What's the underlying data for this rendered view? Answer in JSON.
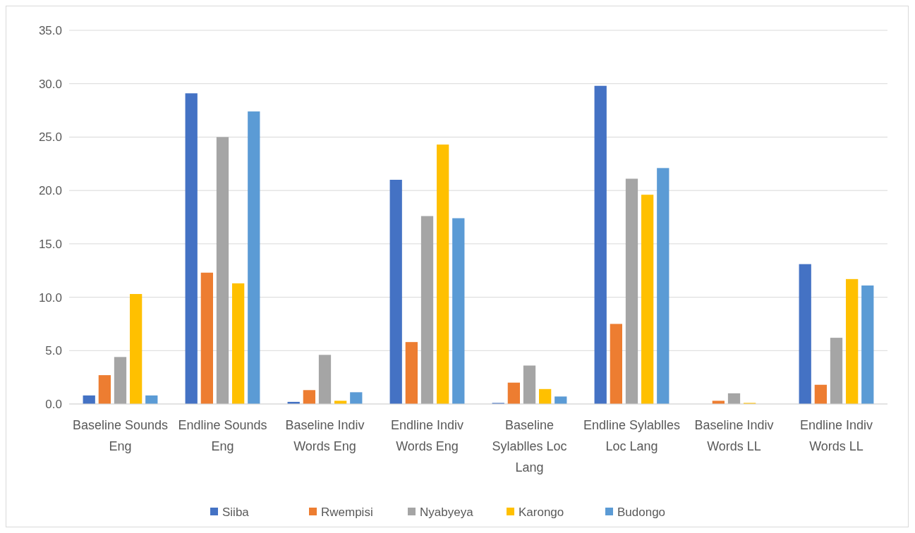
{
  "chart_data": {
    "type": "bar",
    "categories": [
      "Baseline Sounds Eng",
      "Endline Sounds Eng",
      "Baseline Indiv Words Eng",
      "Endline Indiv Words Eng",
      "Baseline Sylablles Loc Lang",
      "Endline Sylablles Loc Lang",
      "Baseline Indiv Words LL",
      "Endline Indiv Words LL"
    ],
    "series": [
      {
        "name": "Siiba",
        "color": "#4472c4",
        "values": [
          0.8,
          29.1,
          0.2,
          21.0,
          0.1,
          29.8,
          0,
          13.1
        ]
      },
      {
        "name": "Rwempisi",
        "color": "#ed7d31",
        "values": [
          2.7,
          12.3,
          1.3,
          5.8,
          2.0,
          7.5,
          0.3,
          1.8
        ]
      },
      {
        "name": "Nyabyeya",
        "color": "#a5a5a5",
        "values": [
          4.4,
          25.0,
          4.6,
          17.6,
          3.6,
          21.1,
          1.0,
          6.2
        ]
      },
      {
        "name": "Karongo",
        "color": "#ffc000",
        "values": [
          10.3,
          11.3,
          0.3,
          24.3,
          1.4,
          19.6,
          0.1,
          11.7
        ]
      },
      {
        "name": "Budongo",
        "color": "#5b9bd5",
        "values": [
          0.8,
          27.4,
          1.1,
          17.4,
          0.7,
          22.1,
          0,
          11.1
        ]
      }
    ],
    "ylim": [
      0,
      35
    ],
    "yticks": [
      {
        "value": 0,
        "label": "0.0"
      },
      {
        "value": 5,
        "label": "5.0"
      },
      {
        "value": 10,
        "label": "10.0"
      },
      {
        "value": 15,
        "label": "15.0"
      },
      {
        "value": 20,
        "label": "20.0"
      },
      {
        "value": 25,
        "label": "25.0"
      },
      {
        "value": 30,
        "label": "30.0"
      },
      {
        "value": 35,
        "label": "35.0"
      }
    ],
    "grid": "y",
    "legend": "bottom"
  }
}
